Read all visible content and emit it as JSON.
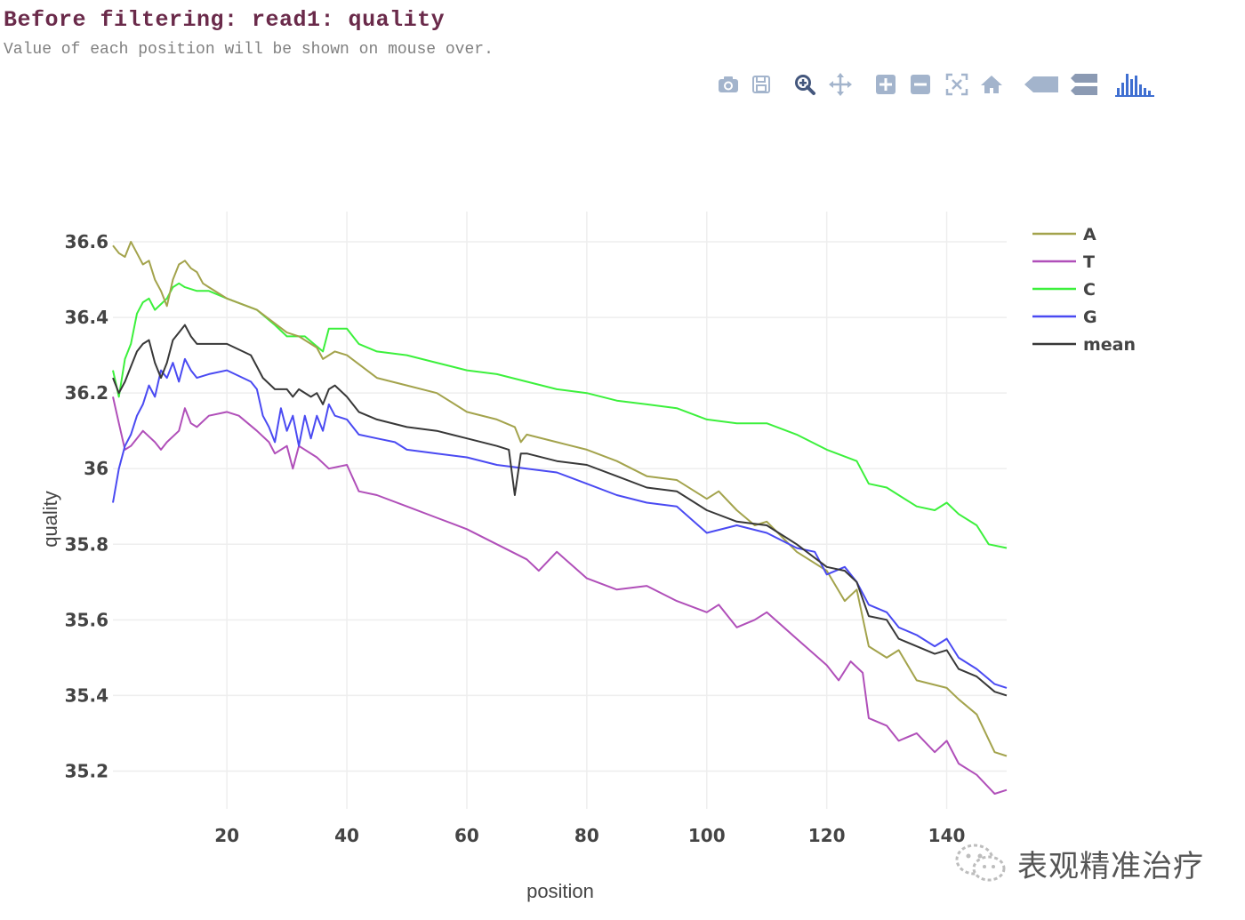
{
  "header": {
    "title": "Before filtering: read1: quality",
    "subtitle": "Value of each position will be shown on mouse over."
  },
  "modebar": {
    "buttons": [
      {
        "name": "camera-icon"
      },
      {
        "name": "save-icon"
      },
      {
        "name": "zoom-icon"
      },
      {
        "name": "pan-icon"
      },
      {
        "name": "zoom-in-icon"
      },
      {
        "name": "zoom-out-icon"
      },
      {
        "name": "autoscale-icon"
      },
      {
        "name": "home-icon"
      },
      {
        "name": "hover-closest-icon"
      },
      {
        "name": "hover-compare-icon"
      },
      {
        "name": "plotly-logo-icon"
      }
    ],
    "icon_color": "#a3b4cc",
    "logo_color": "#3f6fd1"
  },
  "watermark": {
    "text": "表观精准治疗"
  },
  "chart_data": {
    "type": "line",
    "xlabel": "position",
    "ylabel": "quality",
    "xlim": [
      1,
      150
    ],
    "ylim": [
      35.1,
      36.68
    ],
    "xticks": [
      20,
      40,
      60,
      80,
      100,
      120,
      140
    ],
    "yticks": [
      35.2,
      35.4,
      35.6,
      35.8,
      36,
      36.2,
      36.4,
      36.6
    ],
    "ytick_labels": [
      "35.2",
      "35.4",
      "35.6",
      "35.8",
      "36",
      "36.2",
      "36.4",
      "36.6"
    ],
    "grid": true,
    "legend_position": "top-right",
    "series": [
      {
        "name": "A",
        "color": "#a3a34c",
        "points": [
          [
            1,
            36.59
          ],
          [
            2,
            36.57
          ],
          [
            3,
            36.56
          ],
          [
            4,
            36.6
          ],
          [
            5,
            36.57
          ],
          [
            6,
            36.54
          ],
          [
            7,
            36.55
          ],
          [
            8,
            36.5
          ],
          [
            9,
            36.47
          ],
          [
            10,
            36.43
          ],
          [
            11,
            36.5
          ],
          [
            12,
            36.54
          ],
          [
            13,
            36.55
          ],
          [
            14,
            36.53
          ],
          [
            15,
            36.52
          ],
          [
            16,
            36.49
          ],
          [
            17,
            36.48
          ],
          [
            20,
            36.45
          ],
          [
            25,
            36.42
          ],
          [
            30,
            36.36
          ],
          [
            32,
            36.35
          ],
          [
            35,
            36.32
          ],
          [
            36,
            36.29
          ],
          [
            38,
            36.31
          ],
          [
            40,
            36.3
          ],
          [
            45,
            36.24
          ],
          [
            50,
            36.22
          ],
          [
            55,
            36.2
          ],
          [
            60,
            36.15
          ],
          [
            65,
            36.13
          ],
          [
            68,
            36.11
          ],
          [
            69,
            36.07
          ],
          [
            70,
            36.09
          ],
          [
            75,
            36.07
          ],
          [
            80,
            36.05
          ],
          [
            85,
            36.02
          ],
          [
            90,
            35.98
          ],
          [
            95,
            35.97
          ],
          [
            100,
            35.92
          ],
          [
            102,
            35.94
          ],
          [
            105,
            35.89
          ],
          [
            108,
            35.85
          ],
          [
            110,
            35.86
          ],
          [
            115,
            35.78
          ],
          [
            120,
            35.73
          ],
          [
            123,
            35.65
          ],
          [
            125,
            35.68
          ],
          [
            127,
            35.53
          ],
          [
            130,
            35.5
          ],
          [
            132,
            35.52
          ],
          [
            135,
            35.44
          ],
          [
            140,
            35.42
          ],
          [
            142,
            35.39
          ],
          [
            145,
            35.35
          ],
          [
            148,
            35.25
          ],
          [
            150,
            35.24
          ]
        ]
      },
      {
        "name": "T",
        "color": "#b04fb9",
        "points": [
          [
            1,
            36.19
          ],
          [
            2,
            36.12
          ],
          [
            3,
            36.05
          ],
          [
            4,
            36.06
          ],
          [
            5,
            36.08
          ],
          [
            6,
            36.1
          ],
          [
            8,
            36.07
          ],
          [
            9,
            36.05
          ],
          [
            10,
            36.07
          ],
          [
            12,
            36.1
          ],
          [
            13,
            36.16
          ],
          [
            14,
            36.12
          ],
          [
            15,
            36.11
          ],
          [
            17,
            36.14
          ],
          [
            20,
            36.15
          ],
          [
            22,
            36.14
          ],
          [
            25,
            36.1
          ],
          [
            27,
            36.07
          ],
          [
            28,
            36.04
          ],
          [
            30,
            36.06
          ],
          [
            31,
            36.0
          ],
          [
            32,
            36.06
          ],
          [
            35,
            36.03
          ],
          [
            37,
            36.0
          ],
          [
            40,
            36.01
          ],
          [
            42,
            35.94
          ],
          [
            45,
            35.93
          ],
          [
            50,
            35.9
          ],
          [
            55,
            35.87
          ],
          [
            60,
            35.84
          ],
          [
            65,
            35.8
          ],
          [
            70,
            35.76
          ],
          [
            72,
            35.73
          ],
          [
            75,
            35.78
          ],
          [
            80,
            35.71
          ],
          [
            85,
            35.68
          ],
          [
            90,
            35.69
          ],
          [
            95,
            35.65
          ],
          [
            100,
            35.62
          ],
          [
            102,
            35.64
          ],
          [
            105,
            35.58
          ],
          [
            108,
            35.6
          ],
          [
            110,
            35.62
          ],
          [
            115,
            35.55
          ],
          [
            120,
            35.48
          ],
          [
            122,
            35.44
          ],
          [
            124,
            35.49
          ],
          [
            126,
            35.46
          ],
          [
            127,
            35.34
          ],
          [
            130,
            35.32
          ],
          [
            132,
            35.28
          ],
          [
            135,
            35.3
          ],
          [
            138,
            35.25
          ],
          [
            140,
            35.28
          ],
          [
            142,
            35.22
          ],
          [
            145,
            35.19
          ],
          [
            148,
            35.14
          ],
          [
            150,
            35.15
          ]
        ]
      },
      {
        "name": "C",
        "color": "#3cf03c",
        "points": [
          [
            1,
            36.26
          ],
          [
            2,
            36.19
          ],
          [
            3,
            36.29
          ],
          [
            4,
            36.33
          ],
          [
            5,
            36.41
          ],
          [
            6,
            36.44
          ],
          [
            7,
            36.45
          ],
          [
            8,
            36.42
          ],
          [
            10,
            36.45
          ],
          [
            11,
            36.48
          ],
          [
            12,
            36.49
          ],
          [
            13,
            36.48
          ],
          [
            15,
            36.47
          ],
          [
            17,
            36.47
          ],
          [
            20,
            36.45
          ],
          [
            25,
            36.42
          ],
          [
            28,
            36.38
          ],
          [
            30,
            36.35
          ],
          [
            33,
            36.35
          ],
          [
            36,
            36.31
          ],
          [
            37,
            36.37
          ],
          [
            40,
            36.37
          ],
          [
            42,
            36.33
          ],
          [
            45,
            36.31
          ],
          [
            50,
            36.3
          ],
          [
            55,
            36.28
          ],
          [
            60,
            36.26
          ],
          [
            65,
            36.25
          ],
          [
            70,
            36.23
          ],
          [
            75,
            36.21
          ],
          [
            80,
            36.2
          ],
          [
            85,
            36.18
          ],
          [
            90,
            36.17
          ],
          [
            95,
            36.16
          ],
          [
            100,
            36.13
          ],
          [
            105,
            36.12
          ],
          [
            110,
            36.12
          ],
          [
            115,
            36.09
          ],
          [
            120,
            36.05
          ],
          [
            125,
            36.02
          ],
          [
            127,
            35.96
          ],
          [
            130,
            35.95
          ],
          [
            135,
            35.9
          ],
          [
            138,
            35.89
          ],
          [
            140,
            35.91
          ],
          [
            142,
            35.88
          ],
          [
            145,
            35.85
          ],
          [
            147,
            35.8
          ],
          [
            150,
            35.79
          ]
        ]
      },
      {
        "name": "G",
        "color": "#4a4af2",
        "points": [
          [
            1,
            35.91
          ],
          [
            2,
            36.0
          ],
          [
            3,
            36.06
          ],
          [
            4,
            36.09
          ],
          [
            5,
            36.14
          ],
          [
            6,
            36.17
          ],
          [
            7,
            36.22
          ],
          [
            8,
            36.19
          ],
          [
            9,
            36.26
          ],
          [
            10,
            36.24
          ],
          [
            11,
            36.28
          ],
          [
            12,
            36.23
          ],
          [
            13,
            36.29
          ],
          [
            14,
            36.26
          ],
          [
            15,
            36.24
          ],
          [
            17,
            36.25
          ],
          [
            20,
            36.26
          ],
          [
            24,
            36.23
          ],
          [
            25,
            36.21
          ],
          [
            26,
            36.14
          ],
          [
            27,
            36.11
          ],
          [
            28,
            36.07
          ],
          [
            29,
            36.16
          ],
          [
            30,
            36.1
          ],
          [
            31,
            36.14
          ],
          [
            32,
            36.06
          ],
          [
            33,
            36.14
          ],
          [
            34,
            36.08
          ],
          [
            35,
            36.14
          ],
          [
            36,
            36.1
          ],
          [
            37,
            36.17
          ],
          [
            38,
            36.14
          ],
          [
            40,
            36.13
          ],
          [
            42,
            36.09
          ],
          [
            45,
            36.08
          ],
          [
            48,
            36.07
          ],
          [
            50,
            36.05
          ],
          [
            55,
            36.04
          ],
          [
            60,
            36.03
          ],
          [
            65,
            36.01
          ],
          [
            70,
            36.0
          ],
          [
            75,
            35.99
          ],
          [
            80,
            35.96
          ],
          [
            85,
            35.93
          ],
          [
            90,
            35.91
          ],
          [
            95,
            35.9
          ],
          [
            100,
            35.83
          ],
          [
            105,
            35.85
          ],
          [
            110,
            35.83
          ],
          [
            115,
            35.79
          ],
          [
            118,
            35.78
          ],
          [
            120,
            35.72
          ],
          [
            123,
            35.74
          ],
          [
            125,
            35.7
          ],
          [
            127,
            35.64
          ],
          [
            130,
            35.62
          ],
          [
            132,
            35.58
          ],
          [
            135,
            35.56
          ],
          [
            138,
            35.53
          ],
          [
            140,
            35.55
          ],
          [
            142,
            35.5
          ],
          [
            145,
            35.47
          ],
          [
            148,
            35.43
          ],
          [
            150,
            35.42
          ]
        ]
      },
      {
        "name": "mean",
        "color": "#383838",
        "points": [
          [
            1,
            36.24
          ],
          [
            2,
            36.2
          ],
          [
            3,
            36.23
          ],
          [
            4,
            36.27
          ],
          [
            5,
            36.31
          ],
          [
            6,
            36.33
          ],
          [
            7,
            36.34
          ],
          [
            8,
            36.28
          ],
          [
            9,
            36.24
          ],
          [
            10,
            36.28
          ],
          [
            11,
            36.34
          ],
          [
            12,
            36.36
          ],
          [
            13,
            36.38
          ],
          [
            14,
            36.35
          ],
          [
            15,
            36.33
          ],
          [
            17,
            36.33
          ],
          [
            20,
            36.33
          ],
          [
            24,
            36.3
          ],
          [
            25,
            36.27
          ],
          [
            26,
            36.24
          ],
          [
            28,
            36.21
          ],
          [
            30,
            36.21
          ],
          [
            31,
            36.19
          ],
          [
            32,
            36.21
          ],
          [
            34,
            36.19
          ],
          [
            35,
            36.2
          ],
          [
            36,
            36.17
          ],
          [
            37,
            36.21
          ],
          [
            38,
            36.22
          ],
          [
            40,
            36.19
          ],
          [
            42,
            36.15
          ],
          [
            45,
            36.13
          ],
          [
            50,
            36.11
          ],
          [
            55,
            36.1
          ],
          [
            60,
            36.08
          ],
          [
            65,
            36.06
          ],
          [
            67,
            36.05
          ],
          [
            68,
            35.93
          ],
          [
            69,
            36.04
          ],
          [
            70,
            36.04
          ],
          [
            75,
            36.02
          ],
          [
            80,
            36.01
          ],
          [
            85,
            35.98
          ],
          [
            90,
            35.95
          ],
          [
            95,
            35.94
          ],
          [
            100,
            35.89
          ],
          [
            105,
            35.86
          ],
          [
            110,
            35.85
          ],
          [
            115,
            35.8
          ],
          [
            120,
            35.74
          ],
          [
            123,
            35.73
          ],
          [
            125,
            35.7
          ],
          [
            127,
            35.61
          ],
          [
            130,
            35.6
          ],
          [
            132,
            35.55
          ],
          [
            135,
            35.53
          ],
          [
            138,
            35.51
          ],
          [
            140,
            35.52
          ],
          [
            142,
            35.47
          ],
          [
            145,
            35.45
          ],
          [
            148,
            35.41
          ],
          [
            150,
            35.4
          ]
        ]
      }
    ]
  }
}
